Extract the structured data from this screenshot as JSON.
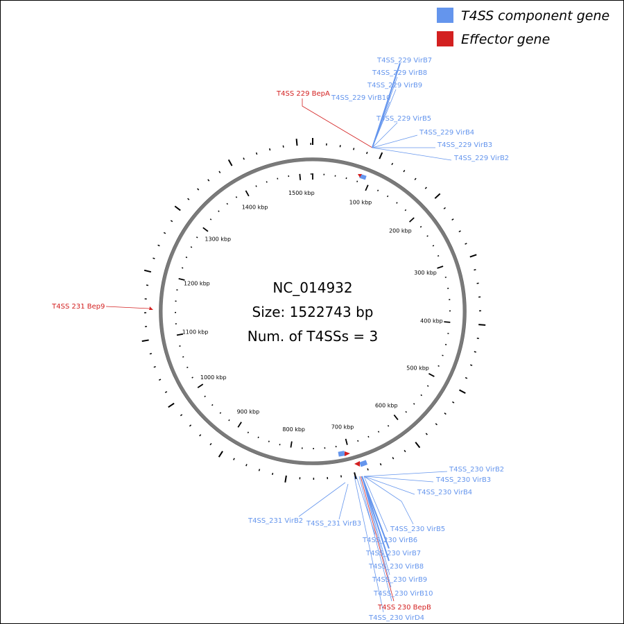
{
  "legend": [
    {
      "label": "T4SS component gene",
      "color": "#6495ed"
    },
    {
      "label": "Effector gene",
      "color": "#d32020"
    }
  ],
  "center": {
    "accession": "NC_014932",
    "size": "Size: 1522743 bp",
    "count": "Num. of T4SSs = 3"
  },
  "genome_size_bp": 1522743,
  "ticks_kbp": [
    {
      "kbp": 100,
      "label": "100 kbp"
    },
    {
      "kbp": 200,
      "label": "200 kbp"
    },
    {
      "kbp": 300,
      "label": "300 kbp"
    },
    {
      "kbp": 400,
      "label": "400 kbp"
    },
    {
      "kbp": 500,
      "label": "500 kbp"
    },
    {
      "kbp": 600,
      "label": "600 kbp"
    },
    {
      "kbp": 700,
      "label": "700 kbp"
    },
    {
      "kbp": 800,
      "label": "800 kbp"
    },
    {
      "kbp": 900,
      "label": "900 kbp"
    },
    {
      "kbp": 1000,
      "label": "1000 kbp"
    },
    {
      "kbp": 1100,
      "label": "1100 kbp"
    },
    {
      "kbp": 1200,
      "label": "1200 kbp"
    },
    {
      "kbp": 1300,
      "label": "1300 kbp"
    },
    {
      "kbp": 1400,
      "label": "1400 kbp"
    },
    {
      "kbp": 1500,
      "label": "1500 kbp"
    }
  ],
  "gene_labels": [
    {
      "text": "T4SS_229 VirB7",
      "type": "component",
      "group": "229"
    },
    {
      "text": "T4SS_229 VirB8",
      "type": "component",
      "group": "229"
    },
    {
      "text": "T4SS_229 VirB9",
      "type": "component",
      "group": "229"
    },
    {
      "text": "T4SS 229 BepA",
      "type": "effector",
      "group": "229"
    },
    {
      "text": "T4SS_229 VirB10",
      "type": "component",
      "group": "229"
    },
    {
      "text": "T4SS_229 VirB5",
      "type": "component",
      "group": "229"
    },
    {
      "text": "T4SS_229 VirB4",
      "type": "component",
      "group": "229"
    },
    {
      "text": "T4SS_229 VirB3",
      "type": "component",
      "group": "229"
    },
    {
      "text": "T4SS_229 VirB2",
      "type": "component",
      "group": "229"
    },
    {
      "text": "T4SS 231 Bep9",
      "type": "effector",
      "group": "231"
    },
    {
      "text": "T4SS_230 VirB2",
      "type": "component",
      "group": "230"
    },
    {
      "text": "T4SS_230 VirB3",
      "type": "component",
      "group": "230"
    },
    {
      "text": "T4SS_230 VirB4",
      "type": "component",
      "group": "230"
    },
    {
      "text": "T4SS_231 VirB2",
      "type": "component",
      "group": "231"
    },
    {
      "text": "T4SS_231 VirB3",
      "type": "component",
      "group": "231"
    },
    {
      "text": "T4SS_230 VirB5",
      "type": "component",
      "group": "230"
    },
    {
      "text": "T4SS_230 VirB6",
      "type": "component",
      "group": "230"
    },
    {
      "text": "T4SS_230 VirB7",
      "type": "component",
      "group": "230"
    },
    {
      "text": "T4SS_230 VirB8",
      "type": "component",
      "group": "230"
    },
    {
      "text": "T4SS_230 VirB9",
      "type": "component",
      "group": "230"
    },
    {
      "text": "T4SS_230 VirB10",
      "type": "component",
      "group": "230"
    },
    {
      "text": "T4SS 230 BepB",
      "type": "effector",
      "group": "230"
    },
    {
      "text": "T4SS_230 VirD4",
      "type": "component",
      "group": "230"
    }
  ]
}
